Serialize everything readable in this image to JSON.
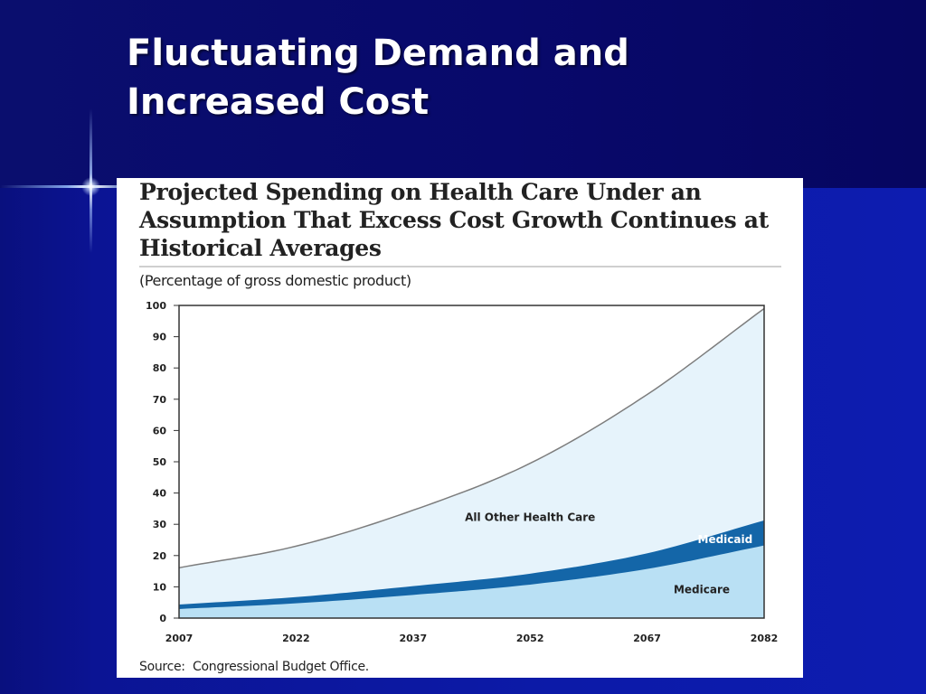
{
  "slide": {
    "title_lines": [
      "Fluctuating Demand and",
      "Increased Cost"
    ]
  },
  "chart_data": {
    "type": "area",
    "title_lines": [
      "Projected Spending on Health Care Under an",
      "Assumption That Excess Cost Growth Continues at",
      "Historical Averages"
    ],
    "subtitle": "(Percentage of gross domestic product)",
    "source_label": "Source:",
    "source_text": "Congressional Budget Office.",
    "stacked": true,
    "x": [
      2007,
      2022,
      2037,
      2052,
      2067,
      2082
    ],
    "x_tick_labels": [
      "2007",
      "2022",
      "2037",
      "2052",
      "2067",
      "2082"
    ],
    "ylim": [
      0,
      100
    ],
    "y_ticks": [
      0,
      10,
      20,
      30,
      40,
      50,
      60,
      70,
      80,
      90,
      100
    ],
    "grid": false,
    "series": [
      {
        "name": "Medicare",
        "values": [
          2.7,
          4.5,
          7.2,
          10.5,
          15.5,
          23
        ],
        "color": "#b9e0f4"
      },
      {
        "name": "Medicaid",
        "values": [
          1.4,
          2,
          2.8,
          3.5,
          5,
          8
        ],
        "color": "#1466a8"
      },
      {
        "name": "All Other Health Care",
        "values": [
          12,
          16.5,
          24.5,
          35.5,
          51,
          68
        ],
        "color": "#e6f3fb"
      }
    ],
    "colors": {
      "line": "#7d7d7d",
      "label_dark": "#222222",
      "label_light": "#ffffff"
    }
  }
}
